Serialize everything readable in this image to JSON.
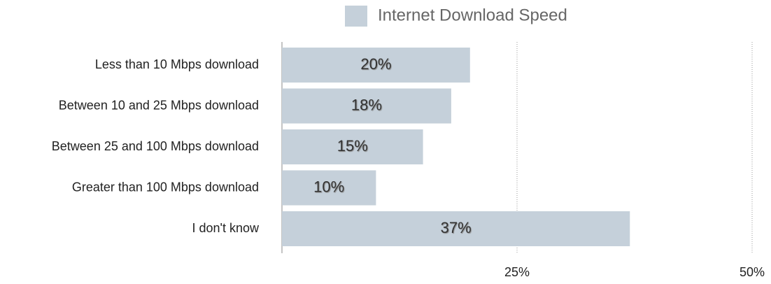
{
  "chart_data": {
    "type": "barh",
    "categories": [
      "Less than 10 Mbps download",
      "Between 10 and 25 Mbps download",
      "Between 25 and 100 Mbps download",
      "Greater than 100 Mbps download",
      "I don't know"
    ],
    "series": [
      {
        "name": "Internet Download Speed",
        "color": "#c5d0da",
        "values": [
          20,
          18,
          15,
          10,
          37
        ],
        "value_labels": [
          "20%",
          "18%",
          "15%",
          "10%",
          "37%"
        ]
      }
    ],
    "xlim": [
      0,
      50
    ],
    "xticks": [
      {
        "value": 25,
        "label": "25%"
      },
      {
        "value": 50,
        "label": "50%"
      }
    ],
    "grid": true,
    "legend": "top"
  }
}
